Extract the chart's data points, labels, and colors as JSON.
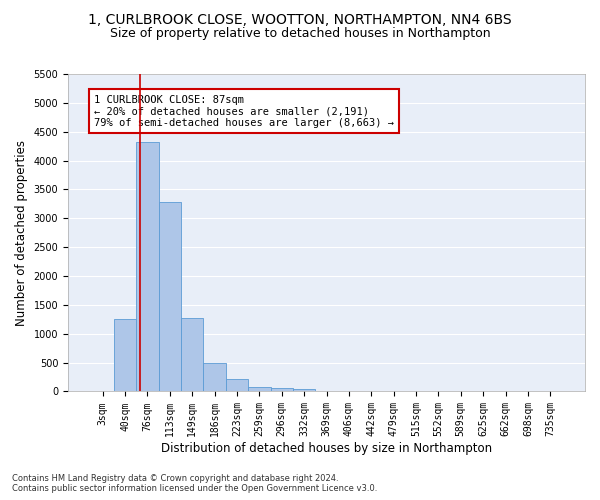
{
  "title": "1, CURLBROOK CLOSE, WOOTTON, NORTHAMPTON, NN4 6BS",
  "subtitle": "Size of property relative to detached houses in Northampton",
  "xlabel": "Distribution of detached houses by size in Northampton",
  "ylabel": "Number of detached properties",
  "footnote1": "Contains HM Land Registry data © Crown copyright and database right 2024.",
  "footnote2": "Contains public sector information licensed under the Open Government Licence v3.0.",
  "bar_labels": [
    "3sqm",
    "40sqm",
    "76sqm",
    "113sqm",
    "149sqm",
    "186sqm",
    "223sqm",
    "259sqm",
    "296sqm",
    "332sqm",
    "369sqm",
    "406sqm",
    "442sqm",
    "479sqm",
    "515sqm",
    "552sqm",
    "589sqm",
    "625sqm",
    "662sqm",
    "698sqm",
    "735sqm"
  ],
  "bar_values": [
    0,
    1260,
    4330,
    3290,
    1270,
    490,
    210,
    85,
    60,
    50,
    0,
    0,
    0,
    0,
    0,
    0,
    0,
    0,
    0,
    0,
    0
  ],
  "bar_color": "#aec6e8",
  "bar_edge_color": "#5b9bd5",
  "background_color": "#e8eef8",
  "grid_color": "#ffffff",
  "annotation_text": "1 CURLBROOK CLOSE: 87sqm\n← 20% of detached houses are smaller (2,191)\n79% of semi-detached houses are larger (8,663) →",
  "vline_x": 1.65,
  "vline_color": "#cc0000",
  "annotation_box_color": "#cc0000",
  "ylim": [
    0,
    5500
  ],
  "yticks": [
    0,
    500,
    1000,
    1500,
    2000,
    2500,
    3000,
    3500,
    4000,
    4500,
    5000,
    5500
  ],
  "title_fontsize": 10,
  "subtitle_fontsize": 9,
  "xlabel_fontsize": 8.5,
  "ylabel_fontsize": 8.5,
  "tick_fontsize": 7,
  "annot_fontsize": 7.5
}
